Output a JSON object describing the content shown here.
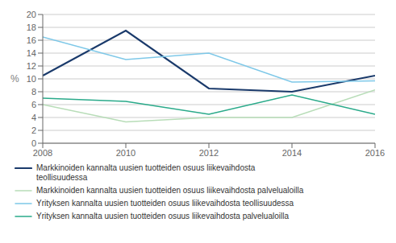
{
  "chart_data": {
    "type": "line",
    "x": [
      2008,
      2010,
      2012,
      2014,
      2016
    ],
    "series": [
      {
        "name": "Markkinoiden kannalta uusien tuotteiden osuus liikevaihdosta\nteollisuudessa",
        "color": "#1a3a6b",
        "values": [
          10.5,
          17.5,
          8.5,
          8.0,
          10.5
        ]
      },
      {
        "name": "Markkinoiden kannalta uusien tuotteiden osuus liikevaihdosta palvelualoilla",
        "color": "#b8ddb8",
        "values": [
          6.0,
          3.3,
          4.0,
          4.0,
          8.3
        ]
      },
      {
        "name": "Yrityksen kannalta uusien tuotteiden osuus liikevaihdosta teollisuudessa",
        "color": "#7ec8e8",
        "values": [
          16.5,
          13.0,
          14.0,
          9.5,
          9.7
        ]
      },
      {
        "name": "Yrityksen kannalta uusien tuotteiden osuus liikevaihdosta palvelualoilla",
        "color": "#2aaa8a",
        "values": [
          7.0,
          6.5,
          4.5,
          7.5,
          4.5
        ]
      }
    ],
    "ylabel": "%",
    "ylim": [
      0,
      20
    ],
    "yticks": [
      0,
      2,
      4,
      6,
      8,
      10,
      12,
      14,
      16,
      18,
      20
    ],
    "xlim": [
      2008,
      2016
    ],
    "xticks": [
      2008,
      2010,
      2012,
      2014,
      2016
    ],
    "grid": true,
    "legend": "bottom"
  }
}
